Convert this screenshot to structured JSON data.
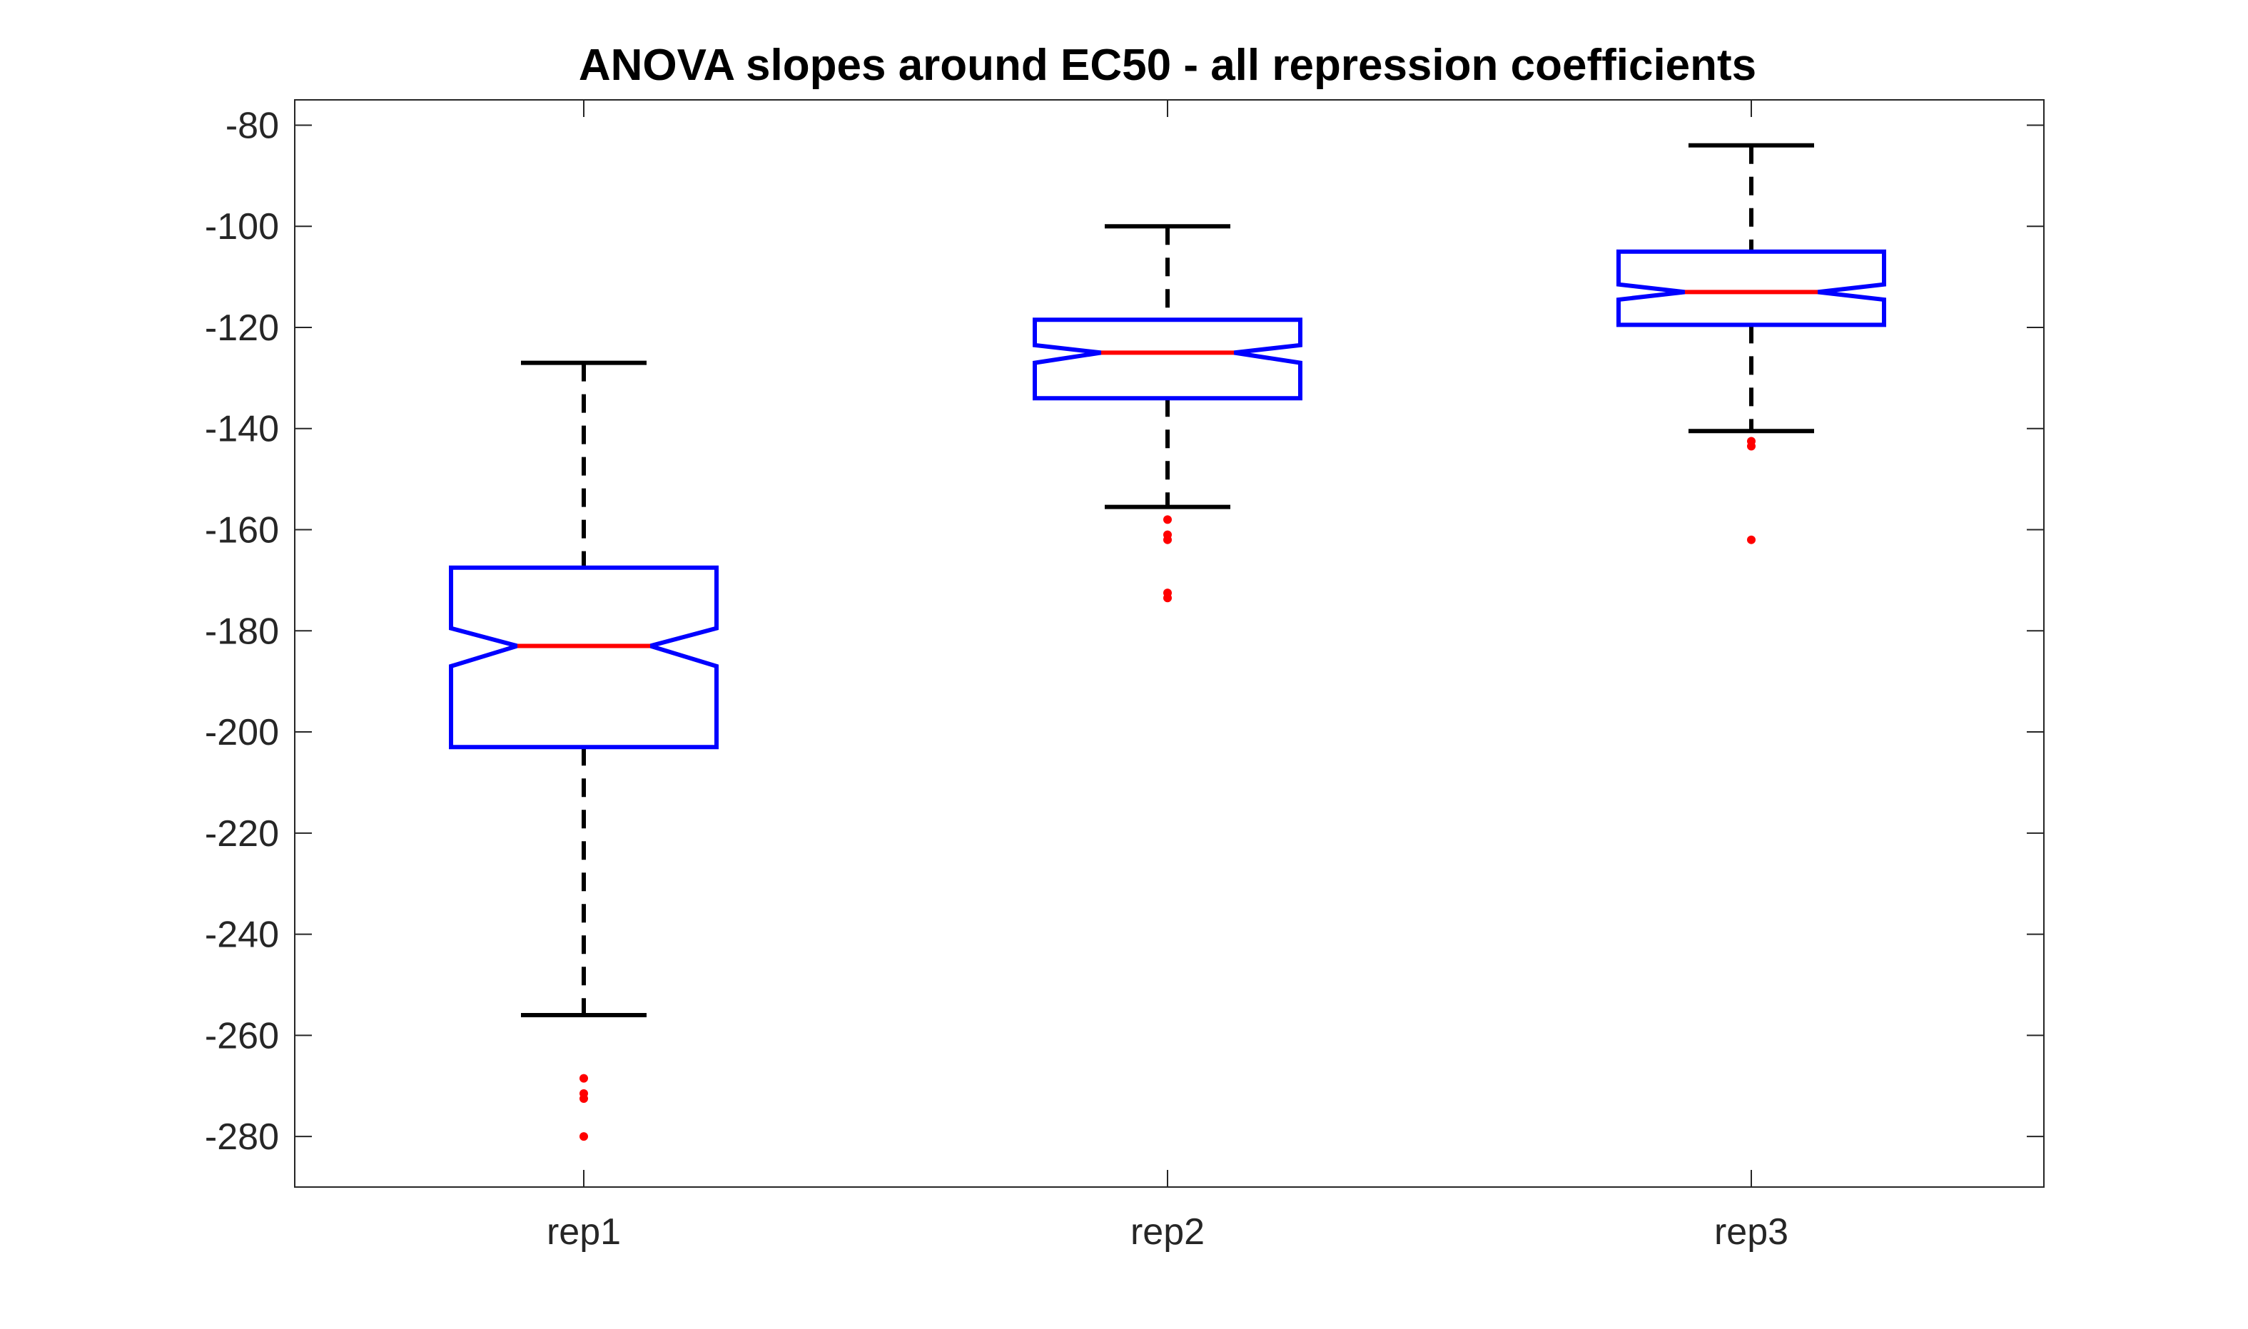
{
  "chart_data": {
    "type": "box",
    "title": "ANOVA slopes around EC50 - all repression coefficients",
    "xlabel": "",
    "ylabel": "",
    "categories": [
      "rep1",
      "rep2",
      "rep3"
    ],
    "ylim": [
      -290,
      -75
    ],
    "yticks": [
      -80,
      -100,
      -120,
      -140,
      -160,
      -180,
      -200,
      -220,
      -240,
      -260,
      -280
    ],
    "notched": true,
    "grid": false,
    "boxes": [
      {
        "label": "rep1",
        "whisker_high": -127,
        "q3": -167.5,
        "notch_high": -179.5,
        "median": -183,
        "notch_low": -187,
        "q1": -203,
        "whisker_low": -256,
        "outliers": [
          -268.5,
          -271.5,
          -272.5,
          -280
        ]
      },
      {
        "label": "rep2",
        "whisker_high": -100,
        "q3": -118.5,
        "notch_high": -123.5,
        "median": -125,
        "notch_low": -127,
        "q1": -134,
        "whisker_low": -155.5,
        "outliers": [
          -158,
          -161,
          -162,
          -172.5,
          -173.5
        ]
      },
      {
        "label": "rep3",
        "whisker_high": -84,
        "q3": -105,
        "notch_high": -111.5,
        "median": -113,
        "notch_low": -114.5,
        "q1": -119.5,
        "whisker_low": -140.5,
        "outliers": [
          -142.5,
          -143.5,
          -162
        ]
      }
    ],
    "colors": {
      "box": "#0000ff",
      "median": "#ff0000",
      "whisker": "#000000",
      "outlier": "#ff0000",
      "axis": "#262626",
      "tick_label": "#262626",
      "title": "#000000"
    }
  }
}
